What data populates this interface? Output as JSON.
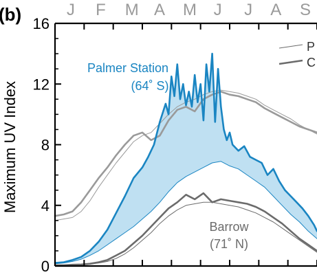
{
  "panel_label": "(b)",
  "chart_data": {
    "type": "line",
    "panel": "(b)",
    "ylabel": "Maximum UV Index",
    "ylim": [
      0,
      16
    ],
    "yticks": [
      0,
      4,
      8,
      12,
      16
    ],
    "month_labels": [
      "J",
      "F",
      "M",
      "A",
      "M",
      "J",
      "J",
      "A",
      "S"
    ],
    "month_fraction_x": [
      0.54,
      1.57,
      2.64,
      3.59,
      4.63,
      5.59,
      6.64,
      7.59,
      8.6
    ],
    "xlim": [
      0,
      9
    ],
    "legend": {
      "position": "top-right",
      "entries": [
        {
          "label": "P",
          "style": "thin"
        },
        {
          "label": "C",
          "style": "thick"
        }
      ]
    },
    "annotations": [
      {
        "text": "Palmer Station",
        "series_color": "blue"
      },
      {
        "text": "(64˚ S)",
        "series_color": "blue"
      },
      {
        "text": "Barrow",
        "series_color": "gray"
      },
      {
        "text": "(71˚ N)",
        "series_color": "gray"
      }
    ],
    "fill_between": {
      "upper": "palmer_thick",
      "lower": "palmer_thin",
      "color": "#bfe0f2"
    },
    "series": [
      {
        "id": "palmer_thick",
        "color": "#1a85c2",
        "width": 2.6,
        "x": [
          0.0,
          0.3,
          0.6,
          0.9,
          1.2,
          1.5,
          1.8,
          2.1,
          2.4,
          2.7,
          3.0,
          3.2,
          3.4,
          3.6,
          3.8,
          3.9,
          4.0,
          4.1,
          4.2,
          4.3,
          4.4,
          4.5,
          4.6,
          4.7,
          4.8,
          4.9,
          5.0,
          5.1,
          5.2,
          5.3,
          5.4,
          5.5,
          5.6,
          5.7,
          5.8,
          5.9,
          6.0,
          6.1,
          6.3,
          6.5,
          6.7,
          6.9,
          7.1,
          7.3,
          7.5,
          7.7,
          7.9,
          8.1,
          8.3,
          8.5,
          8.7,
          8.9,
          9.0
        ],
        "y": [
          0.2,
          0.25,
          0.4,
          0.6,
          1.0,
          1.6,
          2.4,
          3.5,
          4.6,
          5.8,
          6.5,
          7.2,
          8.0,
          9.5,
          10.7,
          10.0,
          12.5,
          11.2,
          13.3,
          11.0,
          12.0,
          10.6,
          11.5,
          10.5,
          12.6,
          10.8,
          12.0,
          9.6,
          13.3,
          11.5,
          14.0,
          9.5,
          13.0,
          10.5,
          9.0,
          8.3,
          8.8,
          8.0,
          7.6,
          7.9,
          7.2,
          7.0,
          6.8,
          6.0,
          6.4,
          5.6,
          5.0,
          4.6,
          4.2,
          3.8,
          3.3,
          2.7,
          2.3
        ]
      },
      {
        "id": "palmer_thin",
        "color": "#1a85c2",
        "width": 1.0,
        "x": [
          0.0,
          0.3,
          0.6,
          0.9,
          1.2,
          1.5,
          1.8,
          2.1,
          2.4,
          2.7,
          3.0,
          3.3,
          3.6,
          3.9,
          4.2,
          4.5,
          4.8,
          5.1,
          5.4,
          5.7,
          6.0,
          6.3,
          6.6,
          6.9,
          7.2,
          7.5,
          7.8,
          8.1,
          8.4,
          8.7,
          9.0
        ],
        "y": [
          0.15,
          0.2,
          0.3,
          0.45,
          0.7,
          1.0,
          1.4,
          1.8,
          2.2,
          2.6,
          3.1,
          3.6,
          4.2,
          4.9,
          5.5,
          5.9,
          6.2,
          6.5,
          6.8,
          6.9,
          6.6,
          6.4,
          6.0,
          5.6,
          5.2,
          4.6,
          4.0,
          3.4,
          2.9,
          2.3,
          1.8
        ]
      },
      {
        "id": "gray_thick",
        "color": "#9a9a9a",
        "width": 2.6,
        "x": [
          0.0,
          0.3,
          0.6,
          0.9,
          1.2,
          1.5,
          1.8,
          2.1,
          2.4,
          2.7,
          3.0,
          3.3,
          3.6,
          3.9,
          4.2,
          4.5,
          4.8,
          5.1,
          5.4,
          5.7,
          6.0,
          6.3,
          6.6,
          6.9,
          7.2,
          7.5,
          7.8,
          8.1,
          8.4,
          8.7,
          9.0
        ],
        "y": [
          3.3,
          3.4,
          3.6,
          4.2,
          5.0,
          5.8,
          6.5,
          7.3,
          8.0,
          8.6,
          8.8,
          8.3,
          8.6,
          9.6,
          10.3,
          10.5,
          10.2,
          11.0,
          11.3,
          11.5,
          11.3,
          11.2,
          11.0,
          10.8,
          10.4,
          10.1,
          9.8,
          9.5,
          9.2,
          9.0,
          8.8
        ]
      },
      {
        "id": "gray_thin",
        "color": "#9a9a9a",
        "width": 1.0,
        "x": [
          0.0,
          0.3,
          0.6,
          0.9,
          1.2,
          1.5,
          1.8,
          2.1,
          2.4,
          2.7,
          3.0,
          3.3,
          3.6,
          3.9,
          4.2,
          4.5,
          4.8,
          5.1,
          5.4,
          5.7,
          6.0,
          6.3,
          6.6,
          6.9,
          7.2,
          7.5,
          7.8,
          8.1,
          8.4,
          8.7,
          9.0
        ],
        "y": [
          3.0,
          3.1,
          3.2,
          3.6,
          4.3,
          5.2,
          6.0,
          6.8,
          7.5,
          8.2,
          8.6,
          8.8,
          9.4,
          10.0,
          10.5,
          10.8,
          11.0,
          11.3,
          11.5,
          11.6,
          11.5,
          11.4,
          11.2,
          11.0,
          10.6,
          10.3,
          10.0,
          9.7,
          9.3,
          9.0,
          8.7
        ]
      },
      {
        "id": "barrow_thick",
        "color": "#6b6b6b",
        "width": 2.6,
        "x": [
          0.0,
          0.3,
          0.6,
          0.9,
          1.2,
          1.5,
          1.8,
          2.1,
          2.4,
          2.7,
          3.0,
          3.3,
          3.6,
          3.9,
          4.2,
          4.5,
          4.8,
          5.1,
          5.4,
          5.7,
          6.0,
          6.3,
          6.6,
          6.9,
          7.2,
          7.5,
          7.8,
          8.1,
          8.4,
          8.7,
          9.0
        ],
        "y": [
          0.05,
          0.05,
          0.08,
          0.1,
          0.15,
          0.25,
          0.4,
          0.7,
          1.0,
          1.5,
          2.0,
          2.6,
          3.2,
          3.8,
          4.2,
          4.7,
          4.4,
          4.8,
          4.2,
          4.4,
          4.3,
          4.2,
          4.1,
          3.9,
          3.6,
          3.2,
          2.8,
          2.3,
          1.8,
          1.4,
          1.0
        ]
      },
      {
        "id": "barrow_thin",
        "color": "#6b6b6b",
        "width": 1.0,
        "x": [
          0.0,
          0.3,
          0.6,
          0.9,
          1.2,
          1.5,
          1.8,
          2.1,
          2.4,
          2.7,
          3.0,
          3.3,
          3.6,
          3.9,
          4.2,
          4.5,
          4.8,
          5.1,
          5.4,
          5.7,
          6.0,
          6.3,
          6.6,
          6.9,
          7.2,
          7.5,
          7.8,
          8.1,
          8.4,
          8.7,
          9.0
        ],
        "y": [
          0.03,
          0.04,
          0.06,
          0.08,
          0.12,
          0.2,
          0.3,
          0.5,
          0.8,
          1.2,
          1.7,
          2.2,
          2.8,
          3.3,
          3.7,
          4.0,
          4.1,
          4.2,
          4.2,
          4.1,
          4.0,
          3.9,
          3.7,
          3.5,
          3.2,
          2.9,
          2.5,
          2.1,
          1.7,
          1.3,
          0.9
        ]
      }
    ]
  }
}
